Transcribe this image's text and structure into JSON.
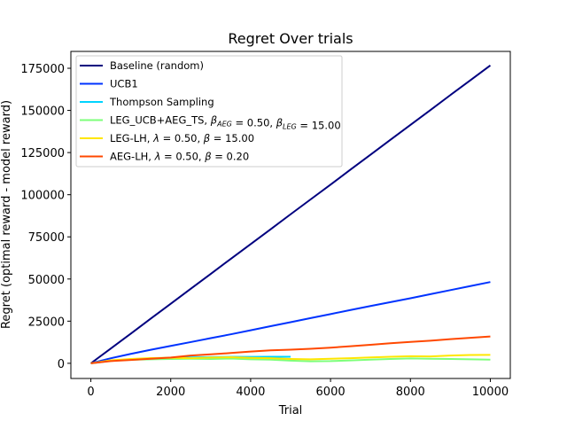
{
  "chart_data": {
    "type": "line",
    "title": "Regret Over trials",
    "xlabel": "Trial",
    "ylabel": "Regret (optimal reward - model reward)",
    "xlim": [
      -500,
      10500
    ],
    "ylim": [
      -9000,
      185000
    ],
    "xticks": [
      0,
      2000,
      4000,
      6000,
      8000,
      10000
    ],
    "xtick_labels": [
      "0",
      "2000",
      "4000",
      "6000",
      "8000",
      "10000"
    ],
    "yticks": [
      0,
      25000,
      50000,
      75000,
      100000,
      125000,
      150000,
      175000
    ],
    "ytick_labels": [
      "0",
      "25000",
      "50000",
      "75000",
      "100000",
      "125000",
      "150000",
      "175000"
    ],
    "grid": false,
    "legend_position": "top-left",
    "series": [
      {
        "name": "Baseline (random)",
        "color": "#00007f",
        "x": [
          0,
          500,
          1000,
          1500,
          2000,
          2500,
          3000,
          3500,
          4000,
          4500,
          5000,
          5500,
          6000,
          6500,
          7000,
          7500,
          8000,
          8500,
          9000,
          9500,
          10000
        ],
        "y": [
          0,
          8800,
          17600,
          26500,
          35300,
          44200,
          53000,
          61900,
          70700,
          79500,
          88400,
          97200,
          106000,
          114900,
          123700,
          132600,
          141400,
          150200,
          159100,
          167900,
          176700
        ]
      },
      {
        "name": "UCB1",
        "color": "#0033ff",
        "x": [
          0,
          500,
          1000,
          1500,
          2000,
          2500,
          3000,
          3500,
          4000,
          4500,
          5000,
          5500,
          6000,
          6500,
          7000,
          7500,
          8000,
          8500,
          9000,
          9500,
          10000
        ],
        "y": [
          0,
          3000,
          5600,
          8000,
          10300,
          12600,
          14900,
          17200,
          19600,
          22000,
          24400,
          26800,
          29200,
          31600,
          34000,
          36300,
          38600,
          41000,
          43400,
          45800,
          48200
        ]
      },
      {
        "name": "Thompson Sampling",
        "color": "#00d4ff",
        "x": [
          0,
          500,
          1000,
          1500,
          2000,
          2500,
          3000,
          3500,
          4000,
          4500,
          5000
        ],
        "y": [
          0,
          1500,
          2400,
          2900,
          3300,
          3500,
          3700,
          3800,
          3800,
          3900,
          3900
        ]
      },
      {
        "name": "LEG_UCB+AEG_TS, β_{AEG}=0.50, β_{LEG}=15.00",
        "color": "#7dff7a",
        "x": [
          0,
          500,
          1000,
          1500,
          2000,
          2500,
          3000,
          3500,
          4000,
          4500,
          5000,
          5500,
          6000,
          6500,
          7000,
          7500,
          8000,
          8500,
          9000,
          9500,
          10000
        ],
        "y": [
          0,
          1500,
          2100,
          2400,
          2600,
          2700,
          2600,
          2800,
          2400,
          2200,
          1600,
          1200,
          1300,
          1700,
          2200,
          2600,
          2900,
          2700,
          2600,
          2400,
          2200
        ]
      },
      {
        "name": "LEG-LH, λ=0.50, β=15.00",
        "color": "#ffe600",
        "x": [
          0,
          500,
          1000,
          1500,
          2000,
          2500,
          3000,
          3500,
          4000,
          4500,
          5000,
          5500,
          6000,
          6500,
          7000,
          7500,
          8000,
          8500,
          9000,
          9500,
          10000
        ],
        "y": [
          0,
          1800,
          2600,
          3100,
          3300,
          3000,
          3400,
          3600,
          3200,
          3000,
          2600,
          2400,
          2700,
          3000,
          3500,
          3900,
          4200,
          4100,
          4600,
          4900,
          5000
        ]
      },
      {
        "name": "AEG-LH, λ=0.50, β=0.20",
        "color": "#ff4800",
        "x": [
          0,
          500,
          1000,
          1500,
          2000,
          2500,
          3000,
          3500,
          4000,
          4500,
          5000,
          5500,
          6000,
          6500,
          7000,
          7500,
          8000,
          8500,
          9000,
          9500,
          10000
        ],
        "y": [
          0,
          1300,
          2000,
          2700,
          3400,
          4600,
          5300,
          6100,
          7000,
          7700,
          8100,
          8600,
          9300,
          10100,
          11000,
          11900,
          12700,
          13400,
          14300,
          15100,
          15900
        ]
      }
    ]
  },
  "legend": {
    "items": [
      {
        "main": "Baseline (random)",
        "color": "#00007f"
      },
      {
        "main": "UCB1",
        "color": "#0033ff"
      },
      {
        "main": "Thompson Sampling",
        "color": "#00d4ff"
      },
      {
        "main": "LEG_UCB+AEG_TS, ",
        "b1": "β",
        "s1": "AEG",
        "m2": " = 0.50, ",
        "b2": "β",
        "s2": "LEG",
        "m3": " = 15.00",
        "color": "#7dff7a"
      },
      {
        "main": "LEG-LH, ",
        "b1": "λ",
        "m2": " = 0.50, ",
        "b2": "β",
        "m3": " = 15.00",
        "color": "#ffe600"
      },
      {
        "main": "AEG-LH, ",
        "b1": "λ",
        "m2": " = 0.50, ",
        "b2": "β",
        "m3": " = 0.20",
        "color": "#ff4800"
      }
    ]
  }
}
